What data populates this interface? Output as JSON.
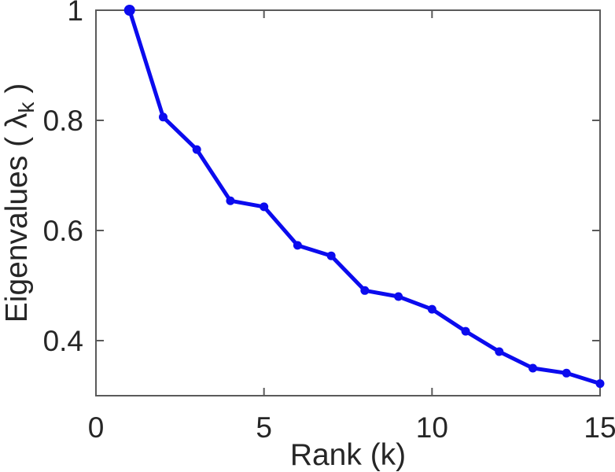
{
  "chart_data": {
    "type": "line",
    "title": "",
    "xlabel": "Rank (k)",
    "ylabel": "Eigenvalues ( λ_k )",
    "ylabel_parts": {
      "prefix": "Eigenvalues ( λ",
      "sub": "k",
      "suffix": " )"
    },
    "series": [
      {
        "name": "eigenvalues",
        "x": [
          1,
          2,
          3,
          4,
          5,
          6,
          7,
          8,
          9,
          10,
          11,
          12,
          13,
          14,
          15
        ],
        "y": [
          1.0,
          0.806,
          0.747,
          0.654,
          0.643,
          0.573,
          0.554,
          0.491,
          0.48,
          0.457,
          0.417,
          0.38,
          0.35,
          0.341,
          0.322
        ]
      }
    ],
    "xlim": [
      0,
      15
    ],
    "ylim": [
      0.3,
      1.0
    ],
    "xticks": [
      0,
      5,
      10,
      15
    ],
    "xtick_labels": [
      "0",
      "5",
      "10",
      "15"
    ],
    "yticks": [
      0.4,
      0.6,
      0.8,
      1
    ],
    "ytick_labels": [
      "0.4",
      "0.6",
      "0.8",
      "1"
    ],
    "grid": false,
    "legend": null,
    "style": {
      "line_color": "#0b0bee",
      "line_width": 5,
      "marker": "dot",
      "marker_size": 5.5,
      "axis_color": "#5a5a5a",
      "text_color": "#262626",
      "background": "#ffffff",
      "tick_direction": "in",
      "box": true
    }
  }
}
